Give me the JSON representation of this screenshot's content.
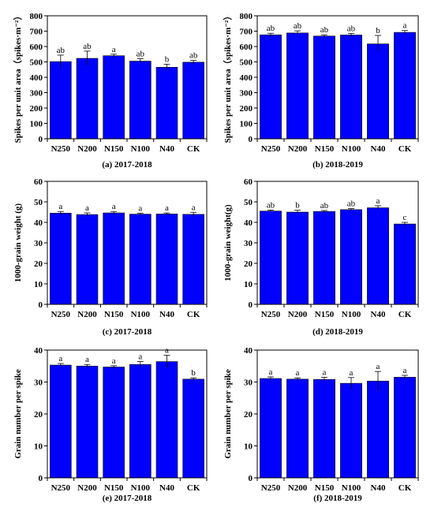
{
  "colors": {
    "bar": "#0000ff",
    "bar_stroke": "#000000",
    "axis": "#000000"
  },
  "chart_data": [
    {
      "type": "bar",
      "caption": "(a) 2017-2018",
      "ylabel": "Spikes per unit area（spikes·m⁻²）",
      "categories": [
        "N250",
        "N200",
        "N150",
        "N100",
        "N40",
        "CK"
      ],
      "values": [
        502,
        523,
        540,
        505,
        465,
        498
      ],
      "errors": [
        42,
        47,
        10,
        15,
        20,
        12
      ],
      "letters": [
        "ab",
        "ab",
        "a",
        "ab",
        "b",
        "ab"
      ],
      "ylim": [
        0,
        800
      ],
      "yticks": [
        "0",
        "100",
        "200",
        "300",
        "400",
        "500",
        "600",
        "700",
        "800"
      ]
    },
    {
      "type": "bar",
      "caption": "(b) 2018-2019",
      "ylabel": "Spikes per unit area（spikes·m⁻²）",
      "categories": [
        "N250",
        "N200",
        "N150",
        "N100",
        "N40",
        "CK"
      ],
      "values": [
        676,
        688,
        668,
        675,
        617,
        692
      ],
      "errors": [
        10,
        14,
        8,
        10,
        55,
        12
      ],
      "letters": [
        "ab",
        "ab",
        "ab",
        "ab",
        "b",
        "a"
      ],
      "ylim": [
        0,
        800
      ],
      "yticks": [
        "0",
        "100",
        "200",
        "300",
        "400",
        "500",
        "600",
        "700",
        "800"
      ]
    },
    {
      "type": "bar",
      "caption": "(c) 2017-2018",
      "ylabel": "1000-grain weight (g)",
      "categories": [
        "N250",
        "N200",
        "N150",
        "N100",
        "N40",
        "CK"
      ],
      "values": [
        44.5,
        43.8,
        44.6,
        44.0,
        44.1,
        43.9
      ],
      "errors": [
        0.8,
        0.8,
        0.7,
        0.5,
        0.5,
        1.0
      ],
      "letters": [
        "a",
        "a",
        "a",
        "a",
        "a",
        "a"
      ],
      "ylim": [
        0,
        60
      ],
      "yticks": [
        "0",
        "10",
        "20",
        "30",
        "40",
        "50",
        "60"
      ]
    },
    {
      "type": "bar",
      "caption": "(d) 2018-2019",
      "ylabel": "1000-grain weight(g)",
      "categories": [
        "N250",
        "N200",
        "N150",
        "N100",
        "N40",
        "CK"
      ],
      "values": [
        45.5,
        45.0,
        45.3,
        46.2,
        47.1,
        39.2
      ],
      "errors": [
        0.5,
        0.9,
        0.5,
        0.5,
        1.0,
        0.8
      ],
      "letters": [
        "ab",
        "b",
        "ab",
        "ab",
        "a",
        "c"
      ],
      "ylim": [
        0,
        60
      ],
      "yticks": [
        "0",
        "10",
        "20",
        "30",
        "40",
        "50",
        "60"
      ]
    },
    {
      "type": "bar",
      "caption": "(e) 2017-2018",
      "ylabel": "Grain number per spike",
      "categories": [
        "N250",
        "N200",
        "N150",
        "N100",
        "N40",
        "CK"
      ],
      "values": [
        35.3,
        35.0,
        34.7,
        35.5,
        36.4,
        30.9
      ],
      "errors": [
        0.5,
        0.5,
        0.4,
        0.9,
        2.0,
        0.4
      ],
      "letters": [
        "a",
        "a",
        "a",
        "a",
        "a",
        "b"
      ],
      "ylim": [
        0,
        40
      ],
      "yticks": [
        "0",
        "10",
        "20",
        "30",
        "40"
      ]
    },
    {
      "type": "bar",
      "caption": "(f) 2018-2019",
      "ylabel": "Grain number per spike",
      "categories": [
        "N250",
        "N200",
        "N150",
        "N100",
        "N40",
        "CK"
      ],
      "values": [
        31.1,
        30.9,
        30.8,
        29.6,
        30.3,
        31.5
      ],
      "errors": [
        0.5,
        0.4,
        0.7,
        1.8,
        3.0,
        0.6
      ],
      "letters": [
        "a",
        "a",
        "a",
        "a",
        "a",
        "a"
      ],
      "ylim": [
        0,
        40
      ],
      "yticks": [
        "0",
        "10",
        "20",
        "30",
        "40"
      ]
    }
  ]
}
